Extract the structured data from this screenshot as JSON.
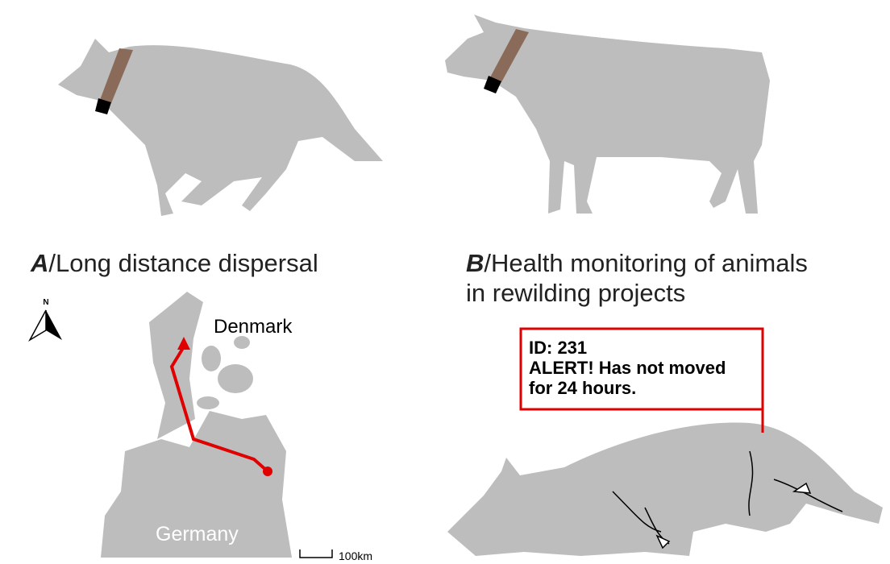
{
  "panels": [
    {
      "letter": "A",
      "separator": "/",
      "title_lines": [
        "Long distance dispersal"
      ]
    },
    {
      "letter": "B",
      "separator": "/",
      "title_lines": [
        "Health monitoring of animals",
        "in rewilding projects"
      ]
    }
  ],
  "map": {
    "north": "N",
    "labels": [
      "Denmark",
      "Germany"
    ],
    "scale": "100km"
  },
  "alert": {
    "lines": [
      "ID: 231",
      "ALERT! Has not moved",
      "for 24 hours."
    ]
  }
}
